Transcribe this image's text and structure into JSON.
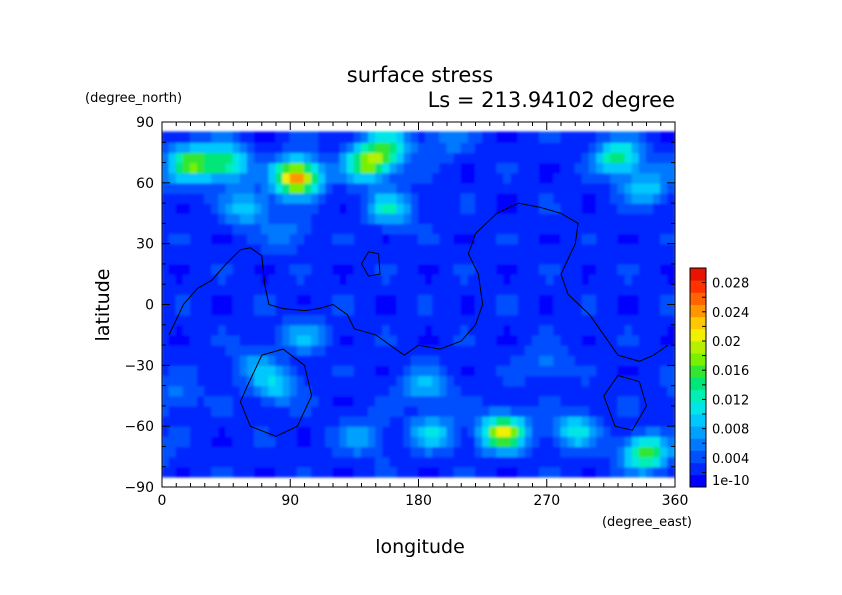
{
  "chart_data": {
    "type": "heatmap",
    "title": "surface stress",
    "subtitle": "Ls = 213.94102 degree",
    "xlabel": "longitude",
    "ylabel": "latitude",
    "x_unit": "(degree_east)",
    "y_unit": "(degree_north)",
    "xlim": [
      0,
      360
    ],
    "ylim": [
      -90,
      90
    ],
    "x_ticks": [
      0,
      90,
      180,
      270,
      360
    ],
    "y_ticks": [
      -90,
      -60,
      -30,
      0,
      30,
      60,
      90
    ],
    "colorbar": {
      "min": 0,
      "max": 0.03,
      "tick_values": [
        0,
        0.004,
        0.008,
        0.012,
        0.016,
        0.02,
        0.024,
        0.028
      ],
      "tick_labels": [
        "1e-10",
        "0.004",
        "0.008",
        "0.012",
        "0.016",
        "0.02",
        "0.024",
        "0.028"
      ],
      "colors": [
        "#0000ff",
        "#0028ff",
        "#0050ff",
        "#0078ff",
        "#00a0ff",
        "#00c8ff",
        "#00e6e6",
        "#00f0b4",
        "#00e678",
        "#32e632",
        "#78f000",
        "#b4f000",
        "#f0f000",
        "#ffc800",
        "#ff9600",
        "#ff6400",
        "#ff3200",
        "#e61400"
      ]
    },
    "field": {
      "background": 0.0025,
      "lat_coverage": [
        -85,
        85
      ],
      "peaks": [
        {
          "lon": 20,
          "lat": 70,
          "value": 0.016
        },
        {
          "lon": 45,
          "lat": 70,
          "value": 0.015
        },
        {
          "lon": 95,
          "lat": 63,
          "value": 0.025
        },
        {
          "lon": 145,
          "lat": 70,
          "value": 0.018
        },
        {
          "lon": 160,
          "lat": 78,
          "value": 0.012
        },
        {
          "lon": 60,
          "lat": 48,
          "value": 0.01
        },
        {
          "lon": 160,
          "lat": 48,
          "value": 0.011
        },
        {
          "lon": 200,
          "lat": 82,
          "value": 0.006
        },
        {
          "lon": 320,
          "lat": 73,
          "value": 0.014
        },
        {
          "lon": 340,
          "lat": 58,
          "value": 0.01
        },
        {
          "lon": 90,
          "lat": 35,
          "value": 0.006
        },
        {
          "lon": 100,
          "lat": -15,
          "value": 0.008
        },
        {
          "lon": 65,
          "lat": -30,
          "value": 0.007
        },
        {
          "lon": 80,
          "lat": -40,
          "value": 0.009
        },
        {
          "lon": 185,
          "lat": -40,
          "value": 0.009
        },
        {
          "lon": 240,
          "lat": -63,
          "value": 0.02
        },
        {
          "lon": 190,
          "lat": -63,
          "value": 0.01
        },
        {
          "lon": 270,
          "lat": -30,
          "value": 0.006
        },
        {
          "lon": 290,
          "lat": -62,
          "value": 0.011
        },
        {
          "lon": 340,
          "lat": -73,
          "value": 0.016
        },
        {
          "lon": 10,
          "lat": -45,
          "value": 0.006
        },
        {
          "lon": 140,
          "lat": -65,
          "value": 0.008
        }
      ]
    },
    "contours": [
      [
        [
          5,
          -15
        ],
        [
          15,
          0
        ],
        [
          25,
          8
        ],
        [
          35,
          12
        ],
        [
          45,
          20
        ],
        [
          55,
          27
        ],
        [
          62,
          28
        ],
        [
          70,
          24
        ],
        [
          72,
          10
        ],
        [
          75,
          0
        ],
        [
          85,
          -2
        ],
        [
          100,
          -3
        ],
        [
          110,
          -2
        ],
        [
          120,
          0
        ],
        [
          130,
          -5
        ],
        [
          135,
          -12
        ],
        [
          150,
          -15
        ],
        [
          160,
          -20
        ],
        [
          170,
          -25
        ],
        [
          180,
          -20
        ],
        [
          195,
          -22
        ],
        [
          210,
          -18
        ],
        [
          220,
          -10
        ],
        [
          225,
          0
        ],
        [
          222,
          15
        ],
        [
          215,
          25
        ],
        [
          220,
          35
        ],
        [
          235,
          45
        ],
        [
          250,
          50
        ],
        [
          265,
          48
        ],
        [
          280,
          45
        ],
        [
          292,
          40
        ],
        [
          290,
          30
        ],
        [
          280,
          15
        ],
        [
          285,
          5
        ],
        [
          300,
          -5
        ],
        [
          310,
          -15
        ],
        [
          320,
          -25
        ],
        [
          335,
          -28
        ],
        [
          345,
          -25
        ],
        [
          355,
          -20
        ]
      ],
      [
        [
          60,
          -40
        ],
        [
          70,
          -25
        ],
        [
          85,
          -22
        ],
        [
          100,
          -30
        ],
        [
          105,
          -45
        ],
        [
          95,
          -60
        ],
        [
          80,
          -65
        ],
        [
          62,
          -60
        ],
        [
          55,
          -48
        ],
        [
          60,
          -40
        ]
      ],
      [
        [
          140,
          20
        ],
        [
          145,
          26
        ],
        [
          152,
          25
        ],
        [
          153,
          15
        ],
        [
          145,
          14
        ],
        [
          140,
          20
        ]
      ],
      [
        [
          310,
          -45
        ],
        [
          320,
          -35
        ],
        [
          335,
          -38
        ],
        [
          340,
          -50
        ],
        [
          330,
          -62
        ],
        [
          318,
          -60
        ],
        [
          310,
          -45
        ]
      ]
    ]
  }
}
